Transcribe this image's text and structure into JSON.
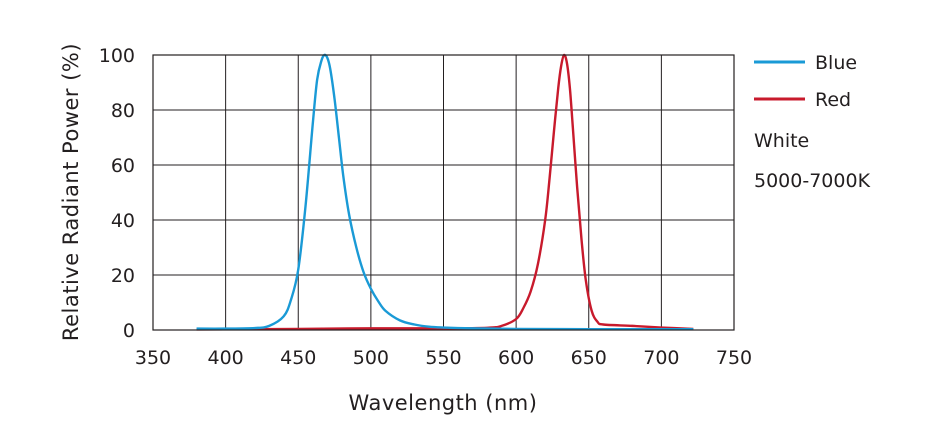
{
  "chart_data": {
    "type": "line",
    "xlabel": "Wavelength (nm)",
    "ylabel": "Relative Radiant Power (%)",
    "xlim": [
      350,
      750
    ],
    "ylim": [
      0,
      100
    ],
    "xticks": [
      350,
      400,
      450,
      500,
      550,
      600,
      650,
      700,
      750
    ],
    "yticks": [
      0,
      20,
      40,
      60,
      80,
      100
    ],
    "grid": true,
    "legend_position": "right",
    "series": [
      {
        "name": "Blue",
        "color": "#1a9ad6",
        "x": [
          380,
          400,
          420,
          430,
          440,
          445,
          450,
          455,
          460,
          463,
          466,
          468,
          470,
          472,
          475,
          478,
          481,
          485,
          490,
          495,
          500,
          505,
          510,
          520,
          530,
          540,
          550,
          570,
          600,
          650,
          700,
          722
        ],
        "y": [
          0.5,
          0.5,
          0.7,
          1.5,
          5,
          11,
          22,
          45,
          75,
          91,
          98,
          100,
          99,
          95,
          84,
          70,
          56,
          42,
          30,
          21,
          15,
          10.5,
          7,
          3.5,
          2,
          1.2,
          0.9,
          0.6,
          0.4,
          0.3,
          0.3,
          0.3
        ]
      },
      {
        "name": "Red",
        "color": "#c81a2c",
        "x": [
          380,
          450,
          500,
          550,
          580,
          590,
          600,
          605,
          610,
          615,
          620,
          623,
          626,
          629,
          631,
          633,
          635,
          637,
          639,
          642,
          645,
          648,
          652,
          656,
          660,
          680,
          700,
          722
        ],
        "y": [
          0.2,
          0.4,
          0.6,
          0.6,
          0.8,
          1.5,
          4,
          8,
          14,
          24,
          40,
          55,
          72,
          88,
          96,
          100,
          97,
          88,
          74,
          52,
          33,
          18,
          7,
          3,
          2,
          1.5,
          0.9,
          0.4
        ]
      }
    ],
    "annotations": [
      "White",
      "5000-7000K"
    ]
  }
}
